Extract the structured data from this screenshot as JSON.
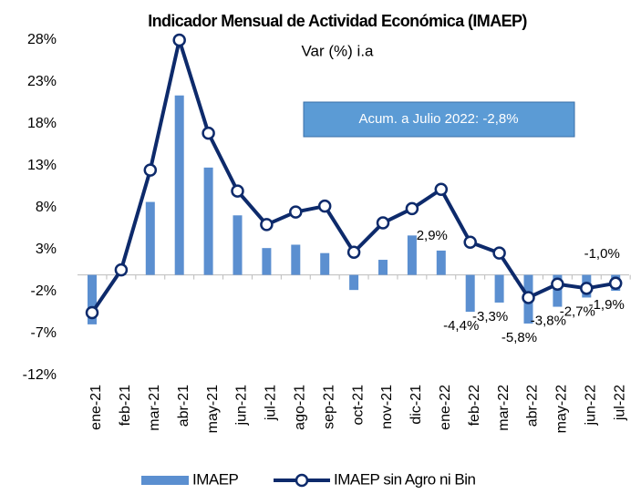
{
  "chart_data": {
    "type": "bar_line",
    "title": "Indicador Mensual de Actividad Económica (IMAEP)",
    "subtitle": "Var (%) i.a",
    "annotation": "Acum. a Julio 2022: -2,8%",
    "categories": [
      "ene-21",
      "feb-21",
      "mar-21",
      "abr-21",
      "may-21",
      "jun-21",
      "jul-21",
      "ago-21",
      "sep-21",
      "oct-21",
      "nov-21",
      "dic-21",
      "ene-22",
      "feb-22",
      "mar-22",
      "abr-22",
      "may-22",
      "jun-22",
      "jul-22"
    ],
    "series": [
      {
        "name": "IMAEP",
        "type": "bar",
        "color": "#5b8fd0",
        "values": [
          -5.9,
          0.5,
          8.7,
          21.4,
          12.8,
          7.1,
          3.2,
          3.6,
          2.6,
          -1.8,
          1.8,
          4.7,
          2.9,
          -4.4,
          -3.3,
          -5.8,
          -3.8,
          -2.7,
          -1.9
        ],
        "value_labels": [
          null,
          null,
          null,
          null,
          null,
          null,
          null,
          null,
          null,
          null,
          null,
          null,
          "2,9%",
          "-4,4%",
          "-3,3%",
          "-5,8%",
          "-3,8%",
          "-2,7%",
          "-1,9%"
        ]
      },
      {
        "name": "IMAEP sin Agro ni Bin",
        "type": "line",
        "color": "#0d2a6b",
        "values": [
          -4.5,
          0.6,
          12.5,
          28.0,
          16.9,
          10.0,
          6.0,
          7.5,
          8.2,
          2.7,
          6.2,
          7.9,
          10.2,
          3.9,
          2.6,
          -2.7,
          -1.1,
          -1.6,
          -1.0
        ],
        "value_labels": [
          null,
          null,
          null,
          null,
          null,
          null,
          null,
          null,
          null,
          null,
          null,
          null,
          null,
          null,
          null,
          null,
          null,
          null,
          "-1,0%"
        ]
      }
    ],
    "ylim": [
      -12,
      28
    ],
    "yticks": [
      {
        "value": -12,
        "label": "-12%"
      },
      {
        "value": -7,
        "label": "-7%"
      },
      {
        "value": -2,
        "label": "-2%"
      },
      {
        "value": 3,
        "label": "3%"
      },
      {
        "value": 8,
        "label": "8%"
      },
      {
        "value": 13,
        "label": "13%"
      },
      {
        "value": 18,
        "label": "18%"
      },
      {
        "value": 23,
        "label": "23%"
      },
      {
        "value": 28,
        "label": "28%"
      }
    ],
    "grid": false,
    "legend": "bottom"
  }
}
